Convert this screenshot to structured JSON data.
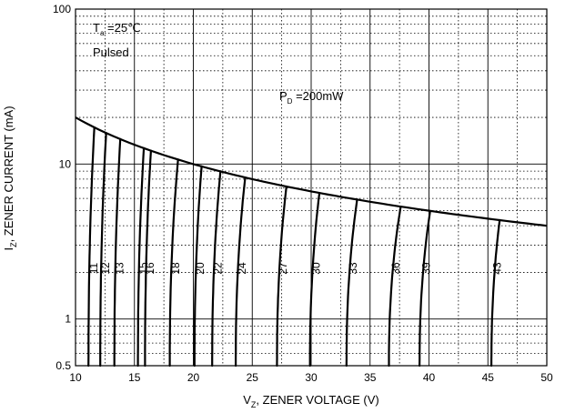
{
  "chart_data": {
    "type": "line",
    "title": "",
    "xlabel": "V",
    "xlabel_sub": "Z",
    "xlabel_rest": ", ZENER VOLTAGE (V)",
    "ylabel": "I",
    "ylabel_sub": "Z",
    "ylabel_rest": ", ZENER CURRENT (mA)",
    "xlim": [
      10,
      50
    ],
    "ylim": [
      0.5,
      100
    ],
    "yscale": "log",
    "grid": true,
    "x_ticks": [
      "10",
      "15",
      "20",
      "25",
      "30",
      "35",
      "40",
      "45",
      "50"
    ],
    "x_tick_values": [
      10,
      15,
      20,
      25,
      30,
      35,
      40,
      45,
      50
    ],
    "y_ticks": [
      "0.5",
      "1",
      "10",
      "100"
    ],
    "y_tick_values": [
      0.5,
      1,
      10,
      100
    ],
    "annotations": {
      "ta_main": "T",
      "ta_sub": "a",
      "ta_rest": " =25℃",
      "pulsed": "Pulsed",
      "pd_main": "P",
      "pd_sub": "D",
      "pd_rest": " =200mW"
    },
    "power_limit": {
      "name": "",
      "power_mw": 200,
      "x": [
        10,
        15,
        20,
        25,
        30,
        35,
        40,
        45,
        50
      ],
      "y": [
        20.0,
        13.3,
        10.0,
        8.0,
        6.67,
        5.71,
        5.0,
        4.44,
        4.0
      ]
    },
    "series": [
      {
        "name": "11",
        "vz_low": 11.1,
        "vz_high": 11.6
      },
      {
        "name": "12",
        "vz_low": 12.1,
        "vz_high": 12.6
      },
      {
        "name": "13",
        "vz_low": 13.3,
        "vz_high": 13.8
      },
      {
        "name": "15",
        "vz_low": 15.3,
        "vz_high": 15.8
      },
      {
        "name": "16",
        "vz_low": 15.9,
        "vz_high": 16.4
      },
      {
        "name": "18",
        "vz_low": 18.0,
        "vz_high": 18.7
      },
      {
        "name": "20",
        "vz_low": 20.1,
        "vz_high": 20.7
      },
      {
        "name": "22",
        "vz_low": 21.6,
        "vz_high": 22.3
      },
      {
        "name": "24",
        "vz_low": 23.6,
        "vz_high": 24.4
      },
      {
        "name": "27",
        "vz_low": 27.1,
        "vz_high": 27.9
      },
      {
        "name": "30",
        "vz_low": 29.9,
        "vz_high": 30.7
      },
      {
        "name": "33",
        "vz_low": 33.0,
        "vz_high": 33.9
      },
      {
        "name": "36",
        "vz_low": 36.6,
        "vz_high": 37.6
      },
      {
        "name": "39",
        "vz_low": 39.2,
        "vz_high": 40.1
      },
      {
        "name": "43",
        "vz_low": 45.3,
        "vz_high": 46.0
      }
    ]
  }
}
